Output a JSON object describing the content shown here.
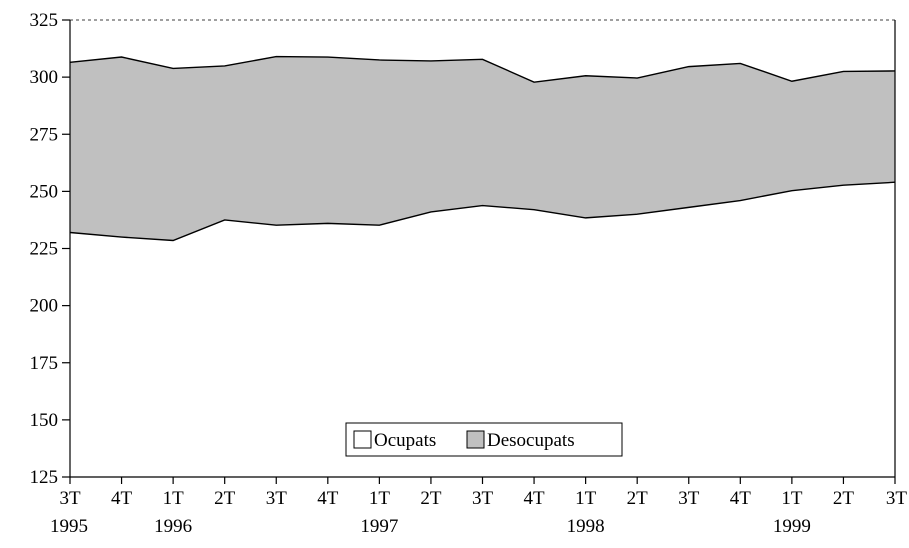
{
  "chart_data": {
    "type": "area",
    "categories": [
      {
        "quarter": "3T",
        "year": "1995"
      },
      {
        "quarter": "4T",
        "year": ""
      },
      {
        "quarter": "1T",
        "year": "1996"
      },
      {
        "quarter": "2T",
        "year": ""
      },
      {
        "quarter": "3T",
        "year": ""
      },
      {
        "quarter": "4T",
        "year": ""
      },
      {
        "quarter": "1T",
        "year": "1997"
      },
      {
        "quarter": "2T",
        "year": ""
      },
      {
        "quarter": "3T",
        "year": ""
      },
      {
        "quarter": "4T",
        "year": ""
      },
      {
        "quarter": "1T",
        "year": "1998"
      },
      {
        "quarter": "2T",
        "year": ""
      },
      {
        "quarter": "3T",
        "year": ""
      },
      {
        "quarter": "4T",
        "year": ""
      },
      {
        "quarter": "1T",
        "year": "1999"
      },
      {
        "quarter": "2T",
        "year": ""
      },
      {
        "quarter": "3T",
        "year": ""
      }
    ],
    "series": [
      {
        "name": "Ocupats",
        "values": [
          232,
          230,
          228.5,
          237.5,
          235.2,
          236,
          235.2,
          241,
          243.8,
          242,
          238.4,
          240,
          243,
          246,
          250.3,
          252.7,
          254
        ]
      },
      {
        "name": "Desocupats",
        "values": [
          306.5,
          308.8,
          303.8,
          304.9,
          309,
          308.8,
          307.5,
          307.1,
          307.8,
          297.8,
          300.6,
          299.6,
          304.6,
          306,
          298.2,
          302.5,
          302.7
        ]
      }
    ],
    "ylim": [
      125,
      325
    ],
    "yticks": [
      125,
      150,
      175,
      200,
      225,
      250,
      275,
      300,
      325
    ],
    "grid": false,
    "legend": "bottom-center",
    "colors": {
      "Ocupats": "#ffffff",
      "Desocupats": "#c0c0c0",
      "line": "#000000",
      "axis": "#000000"
    }
  }
}
